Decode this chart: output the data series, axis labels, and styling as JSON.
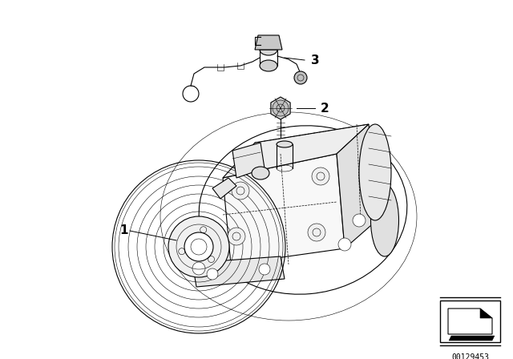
{
  "background_color": "#ffffff",
  "label_1": "1",
  "label_2": "2",
  "label_3": "3",
  "part_id": "00129453",
  "line_color": "#000000",
  "text_color": "#000000",
  "fig_width": 6.4,
  "fig_height": 4.48,
  "dpi": 100,
  "lw": 0.8,
  "lw_thin": 0.4,
  "lw_dash": 0.5
}
